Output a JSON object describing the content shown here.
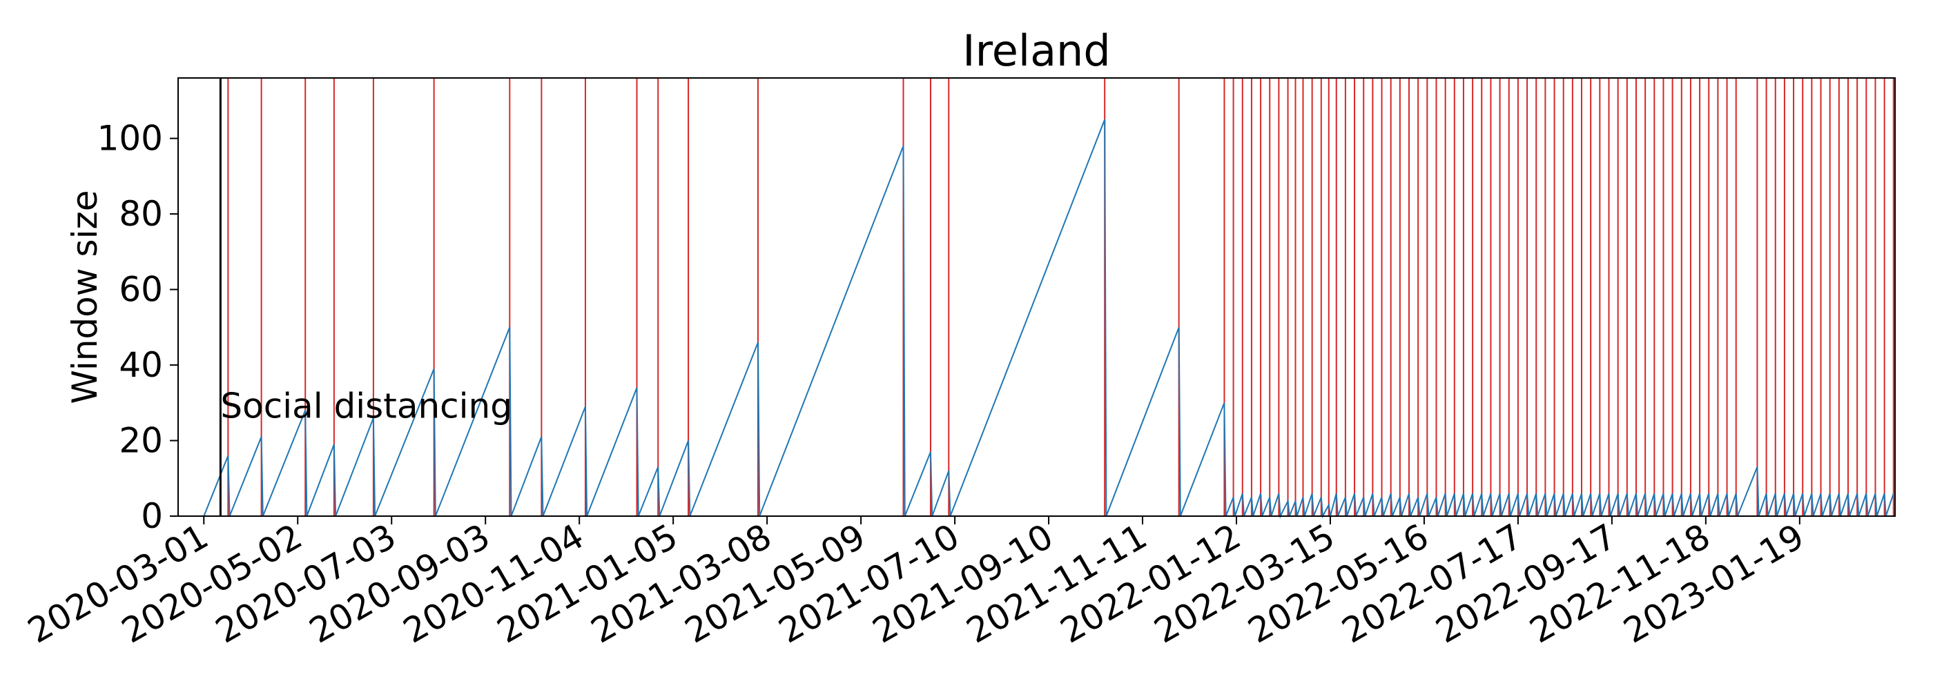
{
  "chart_data": {
    "type": "line",
    "title": "Ireland",
    "xlabel": "",
    "ylabel": "Window size",
    "x_type": "date",
    "xlim": [
      "2020-02-13",
      "2023-03-23"
    ],
    "ylim": [
      0,
      116
    ],
    "yticks": [
      0,
      20,
      40,
      60,
      80,
      100
    ],
    "xticks": [
      "2020-03-01",
      "2020-05-02",
      "2020-07-03",
      "2020-09-03",
      "2020-11-04",
      "2021-01-05",
      "2021-03-08",
      "2021-05-09",
      "2021-07-10",
      "2021-09-10",
      "2021-11-11",
      "2022-01-12",
      "2022-03-15",
      "2022-05-16",
      "2022-07-17",
      "2022-09-17",
      "2022-11-18",
      "2023-01-19"
    ],
    "grid": false,
    "legend": "none",
    "colors": {
      "series": "#1f77b4",
      "reset_lines": "#d62728",
      "event_line": "#000000",
      "frame": "#000000"
    },
    "annotation": {
      "text": "Social distancing",
      "date": "2020-03-12",
      "y": 26
    },
    "event_line_date": "2020-03-12",
    "series": [
      {
        "values_note": "",
        "points": [
          [
            "2020-03-01",
            0
          ],
          [
            "2020-03-17",
            16
          ],
          [
            "2020-03-18",
            0
          ],
          [
            "2020-04-08",
            21
          ],
          [
            "2020-04-09",
            0
          ],
          [
            "2020-05-07",
            28
          ],
          [
            "2020-05-08",
            0
          ],
          [
            "2020-05-26",
            19
          ],
          [
            "2020-05-27",
            0
          ],
          [
            "2020-06-21",
            26
          ],
          [
            "2020-06-22",
            0
          ],
          [
            "2020-07-31",
            39
          ],
          [
            "2020-08-01",
            0
          ],
          [
            "2020-09-19",
            50
          ],
          [
            "2020-09-20",
            0
          ],
          [
            "2020-10-10",
            21
          ],
          [
            "2020-10-11",
            0
          ],
          [
            "2020-11-08",
            29
          ],
          [
            "2020-11-09",
            0
          ],
          [
            "2020-12-12",
            34
          ],
          [
            "2020-12-13",
            0
          ],
          [
            "2020-12-26",
            13
          ],
          [
            "2020-12-27",
            0
          ],
          [
            "2021-01-15",
            20
          ],
          [
            "2021-01-16",
            0
          ],
          [
            "2021-03-02",
            46
          ],
          [
            "2021-03-03",
            0
          ],
          [
            "2021-06-06",
            98
          ],
          [
            "2021-06-07",
            0
          ],
          [
            "2021-06-24",
            17
          ],
          [
            "2021-06-25",
            0
          ],
          [
            "2021-07-06",
            12
          ],
          [
            "2021-07-07",
            0
          ],
          [
            "2021-10-17",
            105
          ],
          [
            "2021-10-18",
            0
          ],
          [
            "2021-12-05",
            50
          ],
          [
            "2021-12-06",
            0
          ],
          [
            "2022-01-04",
            30
          ],
          [
            "2022-01-05",
            0
          ],
          [
            "2022-01-10",
            5
          ],
          [
            "2022-01-11",
            0
          ],
          [
            "2022-01-16",
            6
          ],
          [
            "2022-01-17",
            0
          ],
          [
            "2022-01-22",
            5
          ],
          [
            "2022-01-23",
            0
          ],
          [
            "2022-01-28",
            6
          ],
          [
            "2022-01-29",
            0
          ],
          [
            "2022-02-03",
            5
          ],
          [
            "2022-02-04",
            0
          ],
          [
            "2022-02-09",
            6
          ],
          [
            "2022-02-10",
            0
          ],
          [
            "2022-02-15",
            4
          ],
          [
            "2022-02-16",
            0
          ],
          [
            "2022-02-20",
            4
          ],
          [
            "2022-02-21",
            0
          ],
          [
            "2022-02-25",
            5
          ],
          [
            "2022-02-26",
            0
          ],
          [
            "2022-03-03",
            6
          ],
          [
            "2022-03-04",
            0
          ],
          [
            "2022-03-09",
            5
          ],
          [
            "2022-03-10",
            0
          ],
          [
            "2022-03-14",
            3
          ],
          [
            "2022-03-15",
            0
          ],
          [
            "2022-03-19",
            6
          ],
          [
            "2022-03-20",
            0
          ],
          [
            "2022-03-25",
            5
          ],
          [
            "2022-03-26",
            0
          ],
          [
            "2022-03-31",
            6
          ],
          [
            "2022-04-01",
            0
          ],
          [
            "2022-04-06",
            5
          ],
          [
            "2022-04-07",
            0
          ],
          [
            "2022-04-12",
            6
          ],
          [
            "2022-04-13",
            0
          ],
          [
            "2022-04-18",
            5
          ],
          [
            "2022-04-19",
            0
          ],
          [
            "2022-04-24",
            6
          ],
          [
            "2022-04-25",
            0
          ],
          [
            "2022-04-30",
            5
          ],
          [
            "2022-05-01",
            0
          ],
          [
            "2022-05-06",
            6
          ],
          [
            "2022-05-07",
            0
          ],
          [
            "2022-05-12",
            5
          ],
          [
            "2022-05-13",
            0
          ],
          [
            "2022-05-18",
            6
          ],
          [
            "2022-05-19",
            0
          ],
          [
            "2022-05-24",
            5
          ],
          [
            "2022-05-25",
            0
          ],
          [
            "2022-05-30",
            6
          ],
          [
            "2022-05-31",
            0
          ],
          [
            "2022-06-05",
            6
          ],
          [
            "2022-06-06",
            0
          ],
          [
            "2022-06-11",
            6
          ],
          [
            "2022-06-12",
            0
          ],
          [
            "2022-06-17",
            6
          ],
          [
            "2022-06-18",
            0
          ],
          [
            "2022-06-23",
            6
          ],
          [
            "2022-06-24",
            0
          ],
          [
            "2022-06-29",
            6
          ],
          [
            "2022-06-30",
            0
          ],
          [
            "2022-07-05",
            6
          ],
          [
            "2022-07-06",
            0
          ],
          [
            "2022-07-11",
            6
          ],
          [
            "2022-07-12",
            0
          ],
          [
            "2022-07-17",
            6
          ],
          [
            "2022-07-18",
            0
          ],
          [
            "2022-07-23",
            6
          ],
          [
            "2022-07-24",
            0
          ],
          [
            "2022-07-29",
            6
          ],
          [
            "2022-07-30",
            0
          ],
          [
            "2022-08-04",
            6
          ],
          [
            "2022-08-05",
            0
          ],
          [
            "2022-08-10",
            6
          ],
          [
            "2022-08-11",
            0
          ],
          [
            "2022-08-16",
            6
          ],
          [
            "2022-08-17",
            0
          ],
          [
            "2022-08-22",
            6
          ],
          [
            "2022-08-23",
            0
          ],
          [
            "2022-08-28",
            6
          ],
          [
            "2022-08-29",
            0
          ],
          [
            "2022-09-03",
            6
          ],
          [
            "2022-09-04",
            0
          ],
          [
            "2022-09-09",
            6
          ],
          [
            "2022-09-10",
            0
          ],
          [
            "2022-09-15",
            6
          ],
          [
            "2022-09-16",
            0
          ],
          [
            "2022-09-21",
            6
          ],
          [
            "2022-09-22",
            0
          ],
          [
            "2022-09-27",
            6
          ],
          [
            "2022-09-28",
            0
          ],
          [
            "2022-10-03",
            6
          ],
          [
            "2022-10-04",
            0
          ],
          [
            "2022-10-09",
            6
          ],
          [
            "2022-10-10",
            0
          ],
          [
            "2022-10-15",
            6
          ],
          [
            "2022-10-16",
            0
          ],
          [
            "2022-10-21",
            6
          ],
          [
            "2022-10-22",
            0
          ],
          [
            "2022-10-27",
            6
          ],
          [
            "2022-10-28",
            0
          ],
          [
            "2022-11-02",
            6
          ],
          [
            "2022-11-03",
            0
          ],
          [
            "2022-11-08",
            6
          ],
          [
            "2022-11-09",
            0
          ],
          [
            "2022-11-14",
            6
          ],
          [
            "2022-11-15",
            0
          ],
          [
            "2022-11-20",
            6
          ],
          [
            "2022-11-21",
            0
          ],
          [
            "2022-11-26",
            6
          ],
          [
            "2022-11-27",
            0
          ],
          [
            "2022-12-02",
            6
          ],
          [
            "2022-12-03",
            0
          ],
          [
            "2022-12-08",
            6
          ],
          [
            "2022-12-09",
            0
          ],
          [
            "2022-12-22",
            13
          ],
          [
            "2022-12-23",
            0
          ],
          [
            "2022-12-28",
            6
          ],
          [
            "2022-12-29",
            0
          ],
          [
            "2023-01-03",
            6
          ],
          [
            "2023-01-04",
            0
          ],
          [
            "2023-01-09",
            6
          ],
          [
            "2023-01-10",
            0
          ],
          [
            "2023-01-15",
            6
          ],
          [
            "2023-01-16",
            0
          ],
          [
            "2023-01-21",
            6
          ],
          [
            "2023-01-22",
            0
          ],
          [
            "2023-01-27",
            6
          ],
          [
            "2023-01-28",
            0
          ],
          [
            "2023-02-02",
            6
          ],
          [
            "2023-02-03",
            0
          ],
          [
            "2023-02-08",
            6
          ],
          [
            "2023-02-09",
            0
          ],
          [
            "2023-02-14",
            6
          ],
          [
            "2023-02-15",
            0
          ],
          [
            "2023-02-20",
            6
          ],
          [
            "2023-02-21",
            0
          ],
          [
            "2023-02-26",
            6
          ],
          [
            "2023-02-27",
            0
          ],
          [
            "2023-03-04",
            6
          ],
          [
            "2023-03-05",
            0
          ],
          [
            "2023-03-10",
            6
          ],
          [
            "2023-03-11",
            0
          ],
          [
            "2023-03-16",
            6
          ],
          [
            "2023-03-17",
            0
          ],
          [
            "2023-03-22",
            6
          ]
        ]
      }
    ],
    "reset_dates": [
      "2020-03-17",
      "2020-04-08",
      "2020-05-07",
      "2020-05-26",
      "2020-06-21",
      "2020-07-31",
      "2020-09-19",
      "2020-10-10",
      "2020-11-08",
      "2020-12-12",
      "2020-12-26",
      "2021-01-15",
      "2021-03-02",
      "2021-06-06",
      "2021-06-24",
      "2021-07-06",
      "2021-10-17",
      "2021-12-05",
      "2022-01-04",
      "2022-01-10",
      "2022-01-16",
      "2022-01-22",
      "2022-01-28",
      "2022-02-03",
      "2022-02-09",
      "2022-02-15",
      "2022-02-20",
      "2022-02-25",
      "2022-03-03",
      "2022-03-09",
      "2022-03-14",
      "2022-03-19",
      "2022-03-25",
      "2022-03-31",
      "2022-04-06",
      "2022-04-12",
      "2022-04-18",
      "2022-04-24",
      "2022-04-30",
      "2022-05-06",
      "2022-05-12",
      "2022-05-18",
      "2022-05-24",
      "2022-05-30",
      "2022-06-05",
      "2022-06-11",
      "2022-06-17",
      "2022-06-23",
      "2022-06-29",
      "2022-07-05",
      "2022-07-11",
      "2022-07-17",
      "2022-07-23",
      "2022-07-29",
      "2022-08-04",
      "2022-08-10",
      "2022-08-16",
      "2022-08-22",
      "2022-08-28",
      "2022-09-03",
      "2022-09-09",
      "2022-09-15",
      "2022-09-21",
      "2022-09-27",
      "2022-10-03",
      "2022-10-09",
      "2022-10-15",
      "2022-10-21",
      "2022-10-27",
      "2022-11-02",
      "2022-11-08",
      "2022-11-14",
      "2022-11-20",
      "2022-11-26",
      "2022-12-02",
      "2022-12-08",
      "2022-12-22",
      "2022-12-28",
      "2023-01-03",
      "2023-01-09",
      "2023-01-15",
      "2023-01-21",
      "2023-01-27",
      "2023-02-02",
      "2023-02-08",
      "2023-02-14",
      "2023-02-20",
      "2023-02-26",
      "2023-03-04",
      "2023-03-10",
      "2023-03-16",
      "2023-03-22"
    ]
  }
}
